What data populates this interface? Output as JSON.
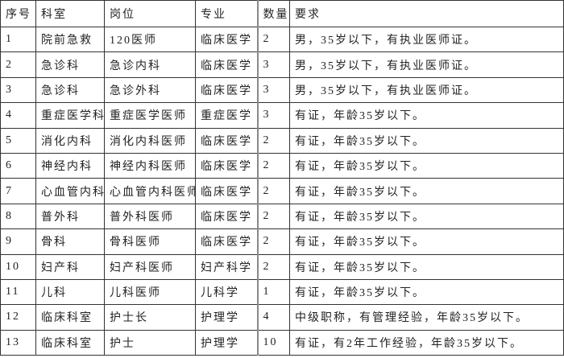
{
  "table": {
    "headers": [
      "序号",
      "科室",
      "岗位",
      "专业",
      "数量",
      "要求"
    ],
    "rows": [
      [
        "1",
        "院前急救",
        "120医师",
        "临床医学",
        "2",
        "男，35岁以下，有执业医师证。"
      ],
      [
        "2",
        "急诊科",
        "急诊内科",
        "临床医学",
        "3",
        "男，35岁以下，有执业医师证。"
      ],
      [
        "3",
        "急诊科",
        "急诊外科",
        "临床医学",
        "3",
        "男，35岁以下，有执业医师证。"
      ],
      [
        "4",
        "重症医学科",
        "重症医学医师",
        "重症医学",
        "3",
        "有证，年龄35岁以下。"
      ],
      [
        "5",
        "消化内科",
        "消化内科医师",
        "临床医学",
        "2",
        "有证，年龄35岁以下。"
      ],
      [
        "6",
        "神经内科",
        "神经内科医师",
        "临床医学",
        "2",
        "有证，年龄35岁以下。"
      ],
      [
        "7",
        "心血管内科",
        "心血管内科医师",
        "临床医学",
        "2",
        "有证，年龄35岁以下。"
      ],
      [
        "8",
        "普外科",
        "普外科医师",
        "临床医学",
        "2",
        "有证，年龄35岁以下。"
      ],
      [
        "9",
        "骨科",
        "骨科医师",
        "临床医学",
        "2",
        "有证，年龄35岁以下。"
      ],
      [
        "10",
        "妇产科",
        "妇产科医师",
        "妇产科学",
        "2",
        "有证，年龄35岁以下。"
      ],
      [
        "11",
        "儿科",
        "儿科医师",
        "儿科学",
        "1",
        "有证，年龄35岁以下。"
      ],
      [
        "12",
        "临床科室",
        "护士长",
        "护理学",
        "4",
        "中级职称，有管理经验，年龄35岁以下。"
      ],
      [
        "13",
        "临床科室",
        "护士",
        "护理学",
        "10",
        "有证，有2年工作经验，年龄35岁以下。"
      ]
    ]
  }
}
